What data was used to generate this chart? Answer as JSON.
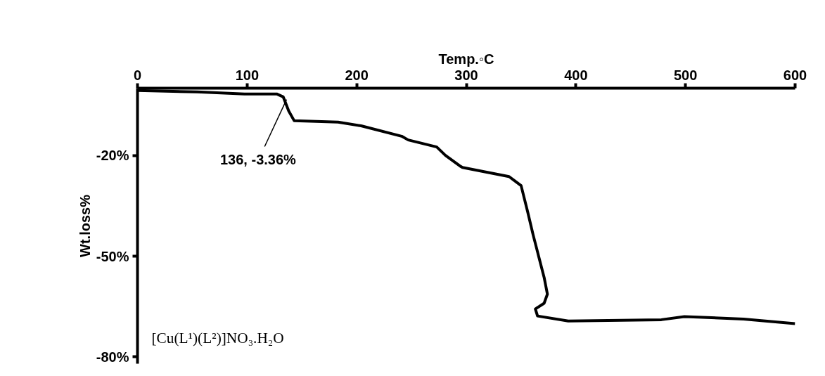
{
  "chart_data": {
    "type": "line",
    "xlabel": "Temp.◦C",
    "ylabel": "Wt.loss%",
    "x": [
      0,
      54.6,
      97.6,
      127,
      133,
      138,
      143,
      183,
      204,
      241,
      247,
      273,
      281,
      294,
      296.5,
      339,
      350,
      356,
      361,
      371,
      374,
      371,
      363,
      365,
      393,
      478,
      499,
      553,
      600
    ],
    "series": [
      {
        "color": "#000000",
        "values": [
          -0.7,
          -1.1,
          -1.7,
          -1.7,
          -2.6,
          -6.8,
          -9.7,
          -10.1,
          -11.2,
          -14.3,
          -15.4,
          -17.5,
          -20.0,
          -23.1,
          -23.6,
          -26.3,
          -29.0,
          -36.8,
          -43.7,
          -56.3,
          -61.3,
          -64.0,
          -65.7,
          -67.8,
          -69.3,
          -68.9,
          -68.0,
          -68.7,
          -70.1
        ]
      }
    ],
    "xlim": [
      0,
      600
    ],
    "xticks": [
      0,
      100,
      200,
      300,
      400,
      500,
      600
    ],
    "ylim": [
      -82,
      0
    ],
    "yticks": [
      {
        "value": -20,
        "label": "-20%"
      },
      {
        "value": -50,
        "label": "-50%"
      },
      {
        "value": -80,
        "label": "-80%"
      }
    ],
    "annotations": [
      {
        "text": "136, -3.36%",
        "x": 136,
        "y": -3.36
      },
      "[Cu(L¹)(L²)]NO₃.H₂O"
    ],
    "grid": false,
    "marker": "none",
    "line_style": "solid"
  }
}
